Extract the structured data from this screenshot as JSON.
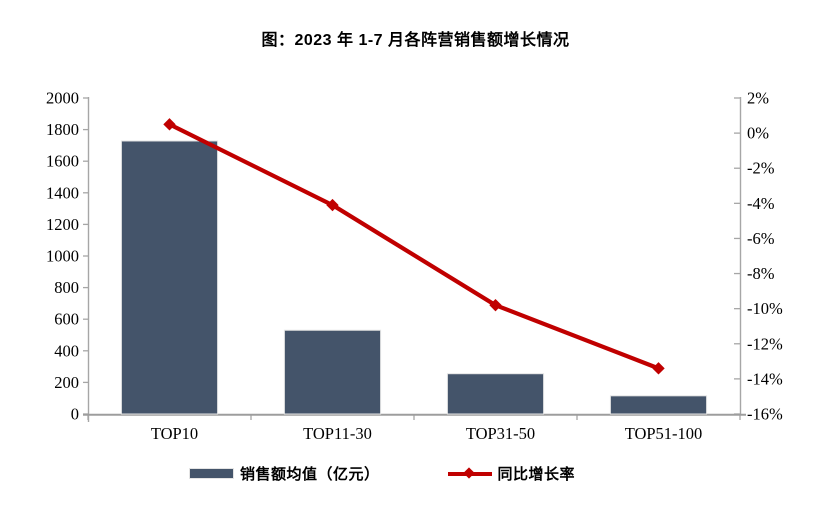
{
  "title": "图：2023 年 1-7 月各阵营销售额增长情况",
  "colors": {
    "bar": "#44546A",
    "bar_border": "#e4e4e4",
    "line": "#C00000",
    "axis": "#A6A6A6",
    "text": "#000000"
  },
  "legend": {
    "items": [
      {
        "label": "销售额均值（亿元）",
        "marker": "bar-swatch"
      },
      {
        "label": "同比增长率",
        "marker": "line-diamond-swatch"
      }
    ]
  },
  "chart_data": {
    "type": "bar+line-combo",
    "title": "图：2023 年 1-7 月各阵营销售额增长情况",
    "categories": [
      "TOP10",
      "TOP11-30",
      "TOP31-50",
      "TOP51-100"
    ],
    "series": [
      {
        "name": "销售额均值（亿元）",
        "type": "bar",
        "axis": "left",
        "values": [
          1728,
          530,
          255,
          115
        ],
        "color": "#44546A"
      },
      {
        "name": "同比增长率",
        "type": "line",
        "axis": "right",
        "marker": "diamond",
        "unit": "%",
        "values": [
          0.5,
          -4.1,
          -9.8,
          -13.4
        ],
        "color": "#C00000"
      }
    ],
    "left_axis": {
      "min": 0,
      "max": 2000,
      "step": 200,
      "tick_labels": [
        "2000",
        "1800",
        "1600",
        "1400",
        "1200",
        "1000",
        "800",
        "600",
        "400",
        "200",
        "0"
      ]
    },
    "right_axis": {
      "min": -16,
      "max": 2,
      "step": 2,
      "unit": "%",
      "tick_labels": [
        "2%",
        "0%",
        "-2%",
        "-4%",
        "-6%",
        "-8%",
        "-10%",
        "-12%",
        "-14%",
        "-16%"
      ]
    },
    "grid": false,
    "legend_position": "bottom"
  }
}
